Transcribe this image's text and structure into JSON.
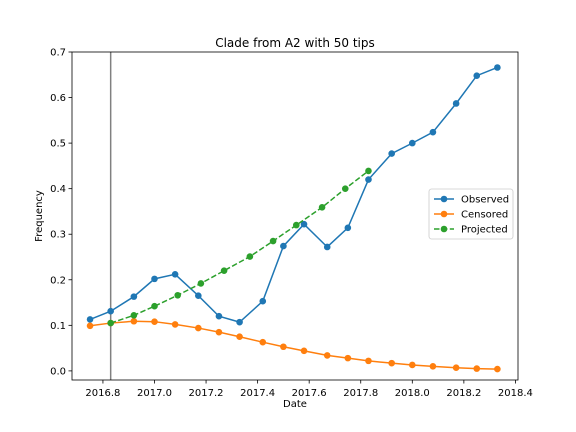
{
  "chart_data": {
    "type": "line",
    "title": "Clade from A2 with 50 tips",
    "xlabel": "Date",
    "ylabel": "Frequency",
    "xlim": [
      2016.68,
      2018.41
    ],
    "ylim": [
      -0.02,
      0.7
    ],
    "xticks": [
      2016.8,
      2017.0,
      2017.2,
      2017.4,
      2017.6,
      2017.8,
      2018.0,
      2018.2,
      2018.4
    ],
    "xtick_labels": [
      "2016.8",
      "2017.0",
      "2017.2",
      "2017.4",
      "2017.6",
      "2017.8",
      "2018.0",
      "2018.2",
      "2018.4"
    ],
    "yticks": [
      0.0,
      0.1,
      0.2,
      0.3,
      0.4,
      0.5,
      0.6,
      0.7
    ],
    "ytick_labels": [
      "0.0",
      "0.1",
      "0.2",
      "0.3",
      "0.4",
      "0.5",
      "0.6",
      "0.7"
    ],
    "vline_x": 2016.83,
    "legend_position": "center-right",
    "grid": false,
    "series": [
      {
        "name": "Observed",
        "color": "#1f77b4",
        "linestyle": "solid",
        "x": [
          2016.75,
          2016.83,
          2016.92,
          2017.0,
          2017.08,
          2017.17,
          2017.25,
          2017.33,
          2017.42,
          2017.5,
          2017.58,
          2017.67,
          2017.75,
          2017.83,
          2017.92,
          2018.0,
          2018.08,
          2018.17,
          2018.25,
          2018.33
        ],
        "y": [
          0.113,
          0.131,
          0.163,
          0.202,
          0.212,
          0.165,
          0.12,
          0.107,
          0.153,
          0.274,
          0.322,
          0.272,
          0.314,
          0.42,
          0.477,
          0.5,
          0.524,
          0.587,
          0.648,
          0.666
        ]
      },
      {
        "name": "Censored",
        "color": "#ff7f0e",
        "linestyle": "solid",
        "x": [
          2016.75,
          2016.83,
          2016.92,
          2017.0,
          2017.08,
          2017.17,
          2017.25,
          2017.33,
          2017.42,
          2017.5,
          2017.58,
          2017.67,
          2017.75,
          2017.83,
          2017.92,
          2018.0,
          2018.08,
          2018.17,
          2018.25,
          2018.33
        ],
        "y": [
          0.099,
          0.105,
          0.109,
          0.108,
          0.102,
          0.094,
          0.085,
          0.075,
          0.063,
          0.053,
          0.044,
          0.034,
          0.028,
          0.022,
          0.017,
          0.013,
          0.01,
          0.007,
          0.005,
          0.004
        ]
      },
      {
        "name": "Projected",
        "color": "#2ca02c",
        "linestyle": "dashed",
        "x": [
          2016.83,
          2016.92,
          2017.0,
          2017.09,
          2017.18,
          2017.27,
          2017.37,
          2017.46,
          2017.55,
          2017.65,
          2017.74,
          2017.83
        ],
        "y": [
          0.105,
          0.122,
          0.142,
          0.166,
          0.192,
          0.22,
          0.251,
          0.285,
          0.32,
          0.359,
          0.4,
          0.439
        ]
      }
    ]
  }
}
